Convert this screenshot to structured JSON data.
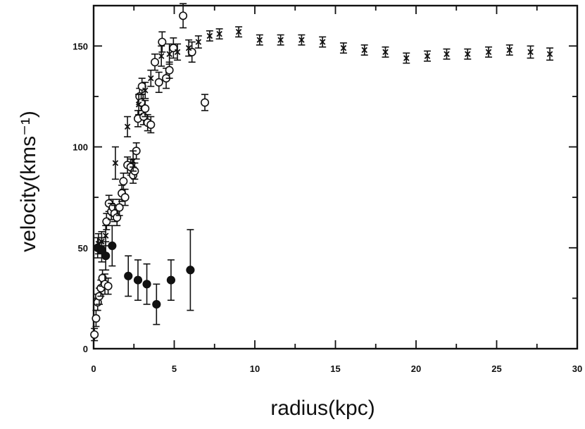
{
  "chart_data": {
    "type": "scatter",
    "xlabel": "radius(kpc)",
    "ylabel": "velocity(kms⁻¹)",
    "xlim": [
      0,
      30
    ],
    "ylim": [
      0,
      170
    ],
    "x_ticks": [
      0,
      5,
      10,
      15,
      20,
      25,
      30
    ],
    "x_tick_labels": [
      "0",
      "5",
      "10",
      "15",
      "20",
      "25",
      "30"
    ],
    "y_ticks": [
      0,
      50,
      100,
      150
    ],
    "y_tick_labels": [
      "0",
      "50",
      "100",
      "150"
    ],
    "grid": false,
    "series": [
      {
        "marker": "open-circle",
        "points": [
          {
            "x": 0.05,
            "y": 7,
            "err": 3
          },
          {
            "x": 0.15,
            "y": 15,
            "err": 4
          },
          {
            "x": 0.25,
            "y": 23,
            "err": 4
          },
          {
            "x": 0.35,
            "y": 26,
            "err": 4
          },
          {
            "x": 0.45,
            "y": 30,
            "err": 4
          },
          {
            "x": 0.55,
            "y": 35,
            "err": 4
          },
          {
            "x": 0.7,
            "y": 32,
            "err": 5
          },
          {
            "x": 0.8,
            "y": 63,
            "err": 4
          },
          {
            "x": 0.9,
            "y": 31,
            "err": 4
          },
          {
            "x": 0.95,
            "y": 72,
            "err": 4
          },
          {
            "x": 1.1,
            "y": 68,
            "err": 4
          },
          {
            "x": 1.2,
            "y": 70,
            "err": 4
          },
          {
            "x": 1.3,
            "y": 67,
            "err": 4
          },
          {
            "x": 1.45,
            "y": 65,
            "err": 4
          },
          {
            "x": 1.6,
            "y": 70,
            "err": 4
          },
          {
            "x": 1.75,
            "y": 77,
            "err": 4
          },
          {
            "x": 1.85,
            "y": 83,
            "err": 4
          },
          {
            "x": 1.95,
            "y": 75,
            "err": 4
          },
          {
            "x": 2.1,
            "y": 91,
            "err": 4
          },
          {
            "x": 2.3,
            "y": 90,
            "err": 4
          },
          {
            "x": 2.45,
            "y": 86,
            "err": 4
          },
          {
            "x": 2.55,
            "y": 88,
            "err": 4
          },
          {
            "x": 2.65,
            "y": 98,
            "err": 4
          },
          {
            "x": 2.75,
            "y": 114,
            "err": 4
          },
          {
            "x": 2.85,
            "y": 125,
            "err": 4
          },
          {
            "x": 2.95,
            "y": 122,
            "err": 4
          },
          {
            "x": 3.0,
            "y": 130,
            "err": 4
          },
          {
            "x": 3.1,
            "y": 115,
            "err": 4
          },
          {
            "x": 3.2,
            "y": 119,
            "err": 4
          },
          {
            "x": 3.35,
            "y": 112,
            "err": 4
          },
          {
            "x": 3.55,
            "y": 111,
            "err": 4
          },
          {
            "x": 3.8,
            "y": 142,
            "err": 4
          },
          {
            "x": 4.05,
            "y": 132,
            "err": 5
          },
          {
            "x": 4.25,
            "y": 152,
            "err": 5
          },
          {
            "x": 4.5,
            "y": 134,
            "err": 5
          },
          {
            "x": 4.7,
            "y": 138,
            "err": 4
          },
          {
            "x": 4.95,
            "y": 149,
            "err": 5
          },
          {
            "x": 5.55,
            "y": 165,
            "err": 6
          },
          {
            "x": 6.1,
            "y": 147,
            "err": 5
          },
          {
            "x": 6.9,
            "y": 122,
            "err": 4
          }
        ]
      },
      {
        "marker": "cross",
        "points": [
          {
            "x": 0.3,
            "y": 52,
            "err": 5
          },
          {
            "x": 0.5,
            "y": 53,
            "err": 5
          },
          {
            "x": 0.75,
            "y": 56,
            "err": 5
          },
          {
            "x": 1.35,
            "y": 92,
            "err": 8
          },
          {
            "x": 2.1,
            "y": 110,
            "err": 5
          },
          {
            "x": 2.45,
            "y": 93,
            "err": 5
          },
          {
            "x": 2.8,
            "y": 121,
            "err": 5
          },
          {
            "x": 3.2,
            "y": 128,
            "err": 4
          },
          {
            "x": 3.55,
            "y": 134,
            "err": 4
          },
          {
            "x": 4.2,
            "y": 145,
            "err": 5
          },
          {
            "x": 4.7,
            "y": 146,
            "err": 5
          },
          {
            "x": 5.2,
            "y": 147,
            "err": 4
          },
          {
            "x": 5.9,
            "y": 149,
            "err": 4
          },
          {
            "x": 6.5,
            "y": 152,
            "err": 3
          },
          {
            "x": 7.2,
            "y": 155,
            "err": 2.5
          },
          {
            "x": 7.8,
            "y": 156,
            "err": 2.5
          },
          {
            "x": 9.0,
            "y": 157,
            "err": 2.5
          },
          {
            "x": 10.3,
            "y": 153,
            "err": 2.5
          },
          {
            "x": 11.6,
            "y": 153,
            "err": 2.5
          },
          {
            "x": 12.9,
            "y": 153,
            "err": 2.5
          },
          {
            "x": 14.2,
            "y": 152,
            "err": 2.5
          },
          {
            "x": 15.5,
            "y": 149,
            "err": 2.5
          },
          {
            "x": 16.8,
            "y": 148,
            "err": 2.5
          },
          {
            "x": 18.1,
            "y": 147,
            "err": 2.5
          },
          {
            "x": 19.4,
            "y": 144,
            "err": 2.5
          },
          {
            "x": 20.7,
            "y": 145,
            "err": 2.5
          },
          {
            "x": 21.9,
            "y": 146,
            "err": 2.5
          },
          {
            "x": 23.2,
            "y": 146,
            "err": 2.5
          },
          {
            "x": 24.5,
            "y": 147,
            "err": 2.5
          },
          {
            "x": 25.8,
            "y": 148,
            "err": 2.5
          },
          {
            "x": 27.1,
            "y": 147,
            "err": 3
          },
          {
            "x": 28.3,
            "y": 146,
            "err": 3
          }
        ]
      },
      {
        "marker": "filled-circle",
        "points": [
          {
            "x": 0.25,
            "y": 50,
            "err": 5
          },
          {
            "x": 0.5,
            "y": 49,
            "err": 6
          },
          {
            "x": 0.75,
            "y": 46,
            "err": 7
          },
          {
            "x": 1.15,
            "y": 51,
            "err": 10
          },
          {
            "x": 2.15,
            "y": 36,
            "err": 10
          },
          {
            "x": 2.75,
            "y": 34,
            "err": 10
          },
          {
            "x": 3.3,
            "y": 32,
            "err": 10
          },
          {
            "x": 3.9,
            "y": 22,
            "err": 10
          },
          {
            "x": 4.8,
            "y": 34,
            "err": 10
          },
          {
            "x": 6.0,
            "y": 39,
            "err": 20
          }
        ]
      }
    ]
  }
}
